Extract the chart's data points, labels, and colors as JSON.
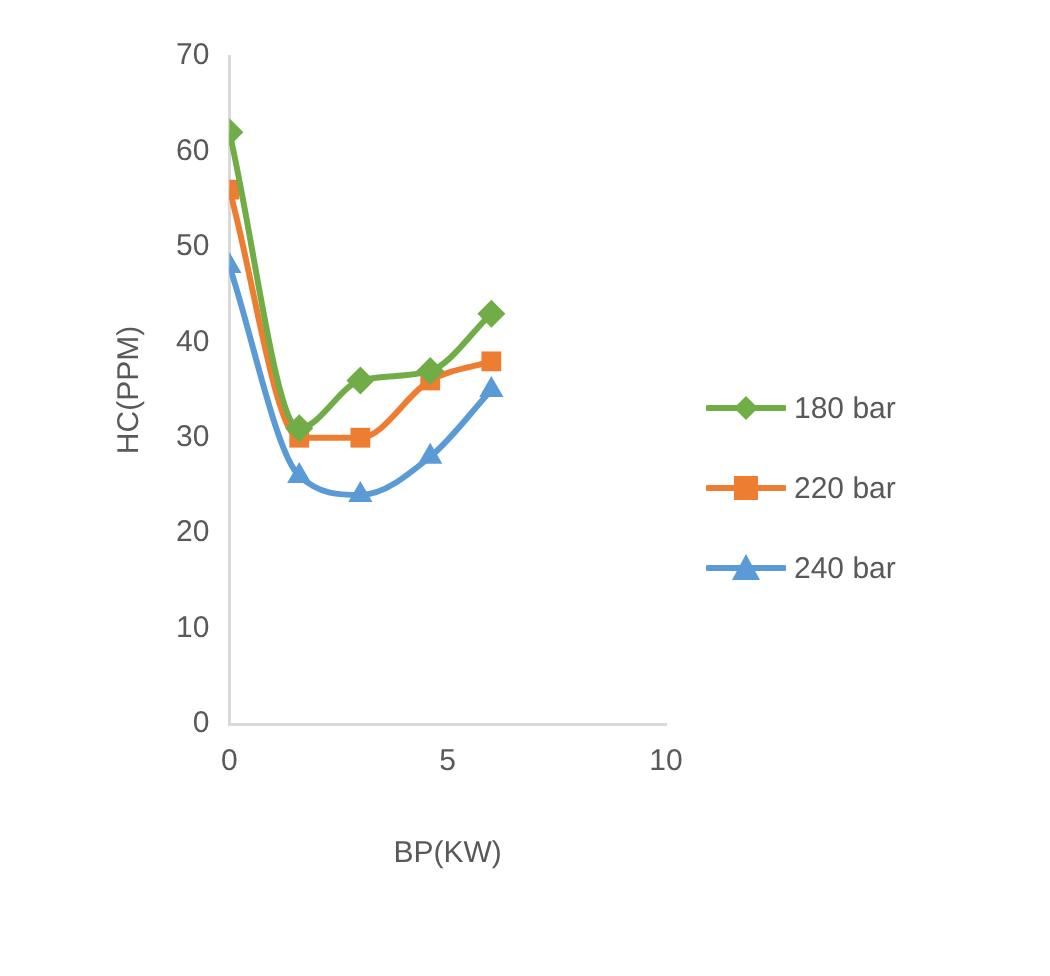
{
  "chart_data": {
    "type": "line",
    "xlabel": "BP(KW)",
    "ylabel": "HC(PPM)",
    "x": [
      0,
      1.6,
      3,
      4.6,
      6
    ],
    "xlim": [
      0,
      10
    ],
    "xticks": [
      0,
      5,
      10
    ],
    "ylim": [
      0,
      70
    ],
    "yticks": [
      0,
      10,
      20,
      30,
      40,
      50,
      60,
      70
    ],
    "grid": false,
    "legend": "right",
    "series": [
      {
        "name": "180 bar",
        "color": "#70ad47",
        "marker": "diamond",
        "values": [
          62,
          31,
          36,
          37,
          43
        ]
      },
      {
        "name": "220 bar",
        "color": "#ed7d31",
        "marker": "square",
        "values": [
          56,
          30,
          30,
          36,
          38
        ]
      },
      {
        "name": "240 bar",
        "color": "#5b9bd5",
        "marker": "triangle",
        "values": [
          48,
          26,
          24,
          28,
          35
        ]
      }
    ]
  }
}
